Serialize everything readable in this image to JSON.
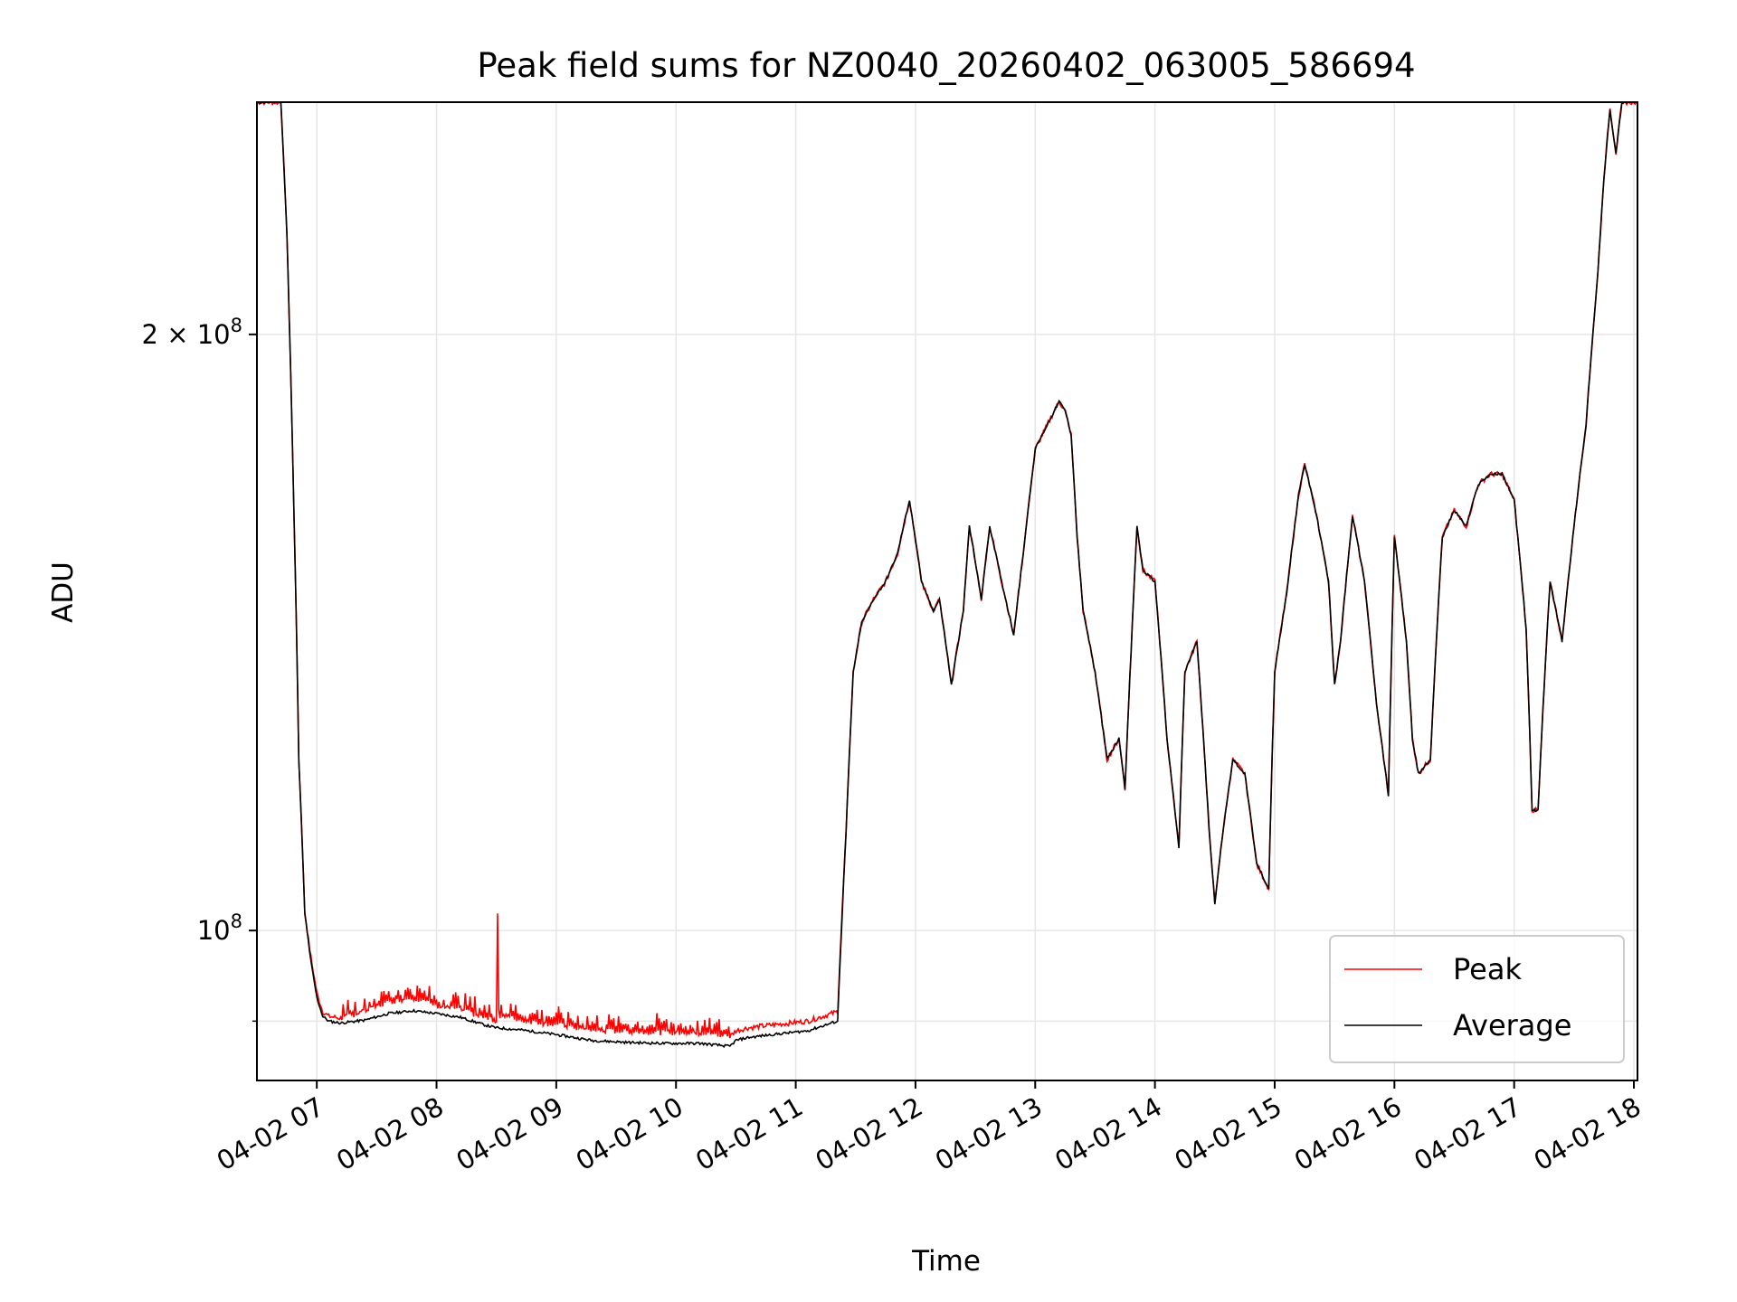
{
  "chart_data": {
    "type": "line",
    "title": "Peak field sums for NZ0040_20260402_063005_586694",
    "xlabel": "Time",
    "ylabel": "ADU",
    "yscale": "log",
    "ylim": [
      84000000,
      262000000
    ],
    "xlim_hours": [
      6.5,
      18.03
    ],
    "grid": true,
    "legend_position": "lower right",
    "xticks": [
      {
        "hour": 7,
        "label": "04-02 07"
      },
      {
        "hour": 8,
        "label": "04-02 08"
      },
      {
        "hour": 9,
        "label": "04-02 09"
      },
      {
        "hour": 10,
        "label": "04-02 10"
      },
      {
        "hour": 11,
        "label": "04-02 11"
      },
      {
        "hour": 12,
        "label": "04-02 12"
      },
      {
        "hour": 13,
        "label": "04-02 13"
      },
      {
        "hour": 14,
        "label": "04-02 14"
      },
      {
        "hour": 15,
        "label": "04-02 15"
      },
      {
        "hour": 16,
        "label": "04-02 16"
      },
      {
        "hour": 17,
        "label": "04-02 17"
      },
      {
        "hour": 18,
        "label": "04-02 18"
      }
    ],
    "yticks_major": [
      {
        "value": 100000000,
        "base": "10",
        "exp": "8"
      },
      {
        "value": 200000000,
        "base": "2 × 10",
        "exp": "8"
      }
    ],
    "ytick_minor": [
      90000000
    ],
    "series": [
      {
        "name": "Peak",
        "color": "#ff0000",
        "x_hours": [
          6.5,
          6.7,
          6.75,
          6.8,
          6.85,
          6.9,
          6.95,
          7.0,
          7.05,
          7.1,
          7.2,
          7.4,
          7.6,
          7.8,
          8.0,
          8.2,
          8.4,
          8.5,
          8.51,
          8.52,
          8.7,
          9.0,
          9.3,
          9.6,
          9.9,
          10.2,
          10.45,
          10.5,
          10.6,
          10.8,
          11.1,
          11.35,
          11.42,
          11.48,
          11.55,
          11.65,
          11.75,
          11.85,
          11.95,
          12.05,
          12.15,
          12.2,
          12.25,
          12.3,
          12.4,
          12.45,
          12.55,
          12.62,
          12.72,
          12.82,
          12.9,
          13.0,
          13.1,
          13.2,
          13.25,
          13.3,
          13.35,
          13.4,
          13.5,
          13.6,
          13.7,
          13.75,
          13.8,
          13.85,
          13.9,
          14.0,
          14.1,
          14.2,
          14.25,
          14.35,
          14.45,
          14.5,
          14.55,
          14.65,
          14.75,
          14.85,
          14.95,
          15.0,
          15.1,
          15.2,
          15.25,
          15.35,
          15.45,
          15.5,
          15.55,
          15.65,
          15.75,
          15.85,
          15.95,
          16.0,
          16.1,
          16.15,
          16.2,
          16.3,
          16.4,
          16.5,
          16.6,
          16.7,
          16.8,
          16.9,
          17.0,
          17.1,
          17.15,
          17.2,
          17.3,
          17.4,
          17.5,
          17.6,
          17.7,
          17.75,
          17.8,
          17.85,
          17.9,
          17.95,
          18.03
        ],
        "y_millions": [
          262,
          262,
          225,
          172,
          122,
          102,
          97,
          93,
          91,
          90.5,
          90.3,
          91,
          92,
          92.5,
          91.6,
          91.2,
          90.3,
          90,
          102,
          90.6,
          90.1,
          89.6,
          89,
          88.9,
          88.8,
          88.7,
          88.4,
          89,
          89.3,
          89.6,
          90,
          91,
          112,
          135,
          143,
          147,
          150,
          155,
          165,
          150,
          145,
          147,
          140,
          133,
          145,
          160,
          147,
          160,
          150,
          141,
          155,
          175,
          180,
          185,
          183,
          178,
          158,
          145,
          135,
          122,
          125,
          118,
          138,
          160,
          152,
          150,
          125,
          110,
          135,
          140,
          113,
          103,
          110,
          122,
          120,
          108,
          105,
          135,
          148,
          166,
          172,
          162,
          150,
          133,
          140,
          162,
          150,
          130,
          117,
          158,
          140,
          125,
          120,
          122,
          158,
          163,
          160,
          168,
          170,
          170,
          165,
          142,
          115,
          115,
          150,
          140,
          160,
          180,
          215,
          240,
          260,
          247,
          262,
          262,
          262
        ],
        "spike_hours_range": [
          7.2,
          10.45
        ]
      },
      {
        "name": "Average",
        "color": "#000000",
        "x_hours": [
          6.5,
          6.7,
          6.75,
          6.8,
          6.85,
          6.9,
          6.95,
          7.0,
          7.05,
          7.1,
          7.2,
          7.4,
          7.6,
          7.8,
          8.0,
          8.2,
          8.4,
          8.5,
          8.7,
          9.0,
          9.3,
          9.6,
          9.9,
          10.2,
          10.45,
          10.5,
          10.6,
          10.8,
          11.1,
          11.35,
          11.42,
          11.48,
          11.55,
          11.65,
          11.75,
          11.85,
          11.95,
          12.05,
          12.15,
          12.2,
          12.25,
          12.3,
          12.4,
          12.45,
          12.55,
          12.62,
          12.72,
          12.82,
          12.9,
          13.0,
          13.1,
          13.2,
          13.25,
          13.3,
          13.35,
          13.4,
          13.5,
          13.6,
          13.7,
          13.75,
          13.8,
          13.85,
          13.9,
          14.0,
          14.1,
          14.2,
          14.25,
          14.35,
          14.45,
          14.5,
          14.55,
          14.65,
          14.75,
          14.85,
          14.95,
          15.0,
          15.1,
          15.2,
          15.25,
          15.35,
          15.45,
          15.5,
          15.55,
          15.65,
          15.75,
          15.85,
          15.95,
          16.0,
          16.1,
          16.15,
          16.2,
          16.3,
          16.4,
          16.5,
          16.6,
          16.7,
          16.8,
          16.9,
          17.0,
          17.1,
          17.15,
          17.2,
          17.3,
          17.4,
          17.5,
          17.6,
          17.7,
          17.75,
          17.8,
          17.85,
          17.9,
          17.95,
          18.03
        ],
        "y_millions": [
          262,
          262,
          225,
          172,
          122,
          102,
          96.5,
          92.5,
          90.5,
          90,
          89.8,
          90.1,
          90.8,
          91.1,
          90.8,
          90.4,
          89.6,
          89.3,
          89.1,
          88.6,
          88,
          87.8,
          87.7,
          87.7,
          87.4,
          88,
          88.3,
          88.6,
          89,
          90,
          112,
          135,
          143,
          147,
          150,
          155,
          165,
          150,
          145,
          147,
          140,
          133,
          145,
          160,
          147,
          160,
          150,
          141,
          155,
          175,
          180,
          185,
          183,
          178,
          158,
          145,
          135,
          122,
          125,
          118,
          138,
          160,
          152,
          150,
          125,
          110,
          135,
          140,
          113,
          103,
          110,
          122,
          120,
          108,
          105,
          135,
          148,
          166,
          172,
          162,
          150,
          133,
          140,
          162,
          150,
          130,
          117,
          158,
          140,
          125,
          120,
          122,
          158,
          163,
          160,
          168,
          170,
          170,
          165,
          142,
          115,
          115,
          150,
          140,
          160,
          180,
          215,
          240,
          260,
          247,
          262,
          262,
          262
        ]
      }
    ]
  }
}
